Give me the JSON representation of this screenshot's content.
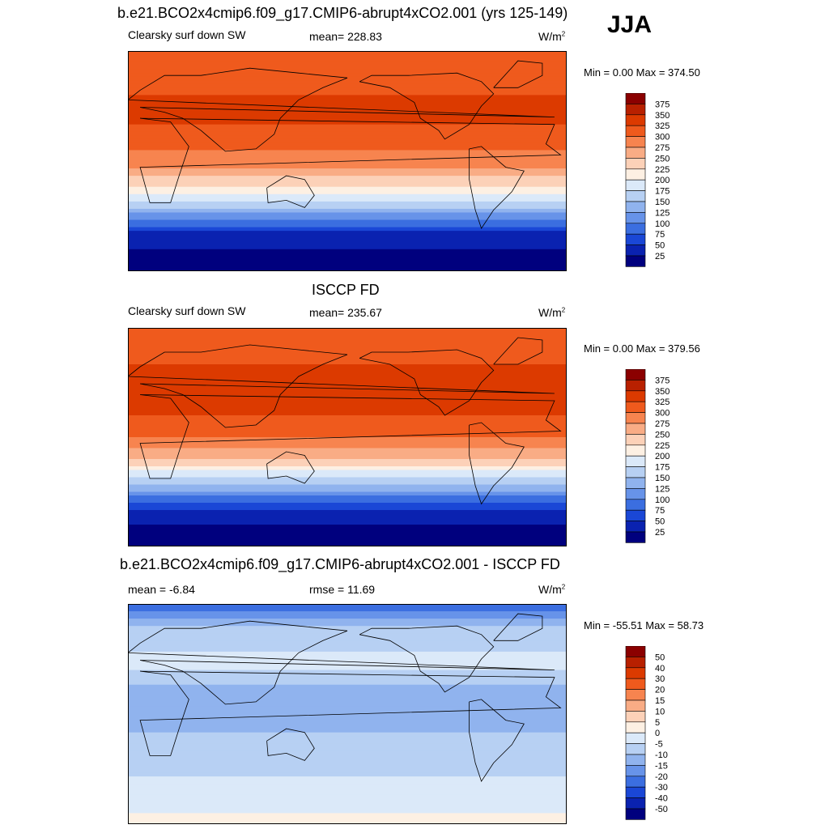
{
  "season": "JJA",
  "chart_data": [
    {
      "type": "heatmap",
      "title": "b.e21.BCO2x4cmip6.f09_g17.CMIP6-abrupt4xCO2.001 (yrs 125-149)",
      "left_label": "Clearsky surf down SW",
      "center_label": "mean= 228.83",
      "units": "W/m",
      "units_sup": "2",
      "minmax": "Min =   0.00 Max = 374.50",
      "min": 0.0,
      "max": 374.5,
      "colorbar_levels": [
        "375",
        "350",
        "325",
        "300",
        "275",
        "250",
        "225",
        "200",
        "175",
        "150",
        "125",
        "100",
        "75",
        "50",
        "25"
      ],
      "colors": [
        "#8b0000",
        "#b82000",
        "#dc3a00",
        "#ef5a1d",
        "#f7844f",
        "#f9ac85",
        "#fcd1b8",
        "#fdf0e3",
        "#dbe9f9",
        "#b7d0f3",
        "#90b3ee",
        "#6793e9",
        "#3b6ee0",
        "#1a47d6",
        "#0a22b0",
        "#00007e"
      ],
      "lat_profile": [
        {
          "lat": 90,
          "value": 310
        },
        {
          "lat": 60,
          "value": 320
        },
        {
          "lat": 40,
          "value": 335
        },
        {
          "lat": 20,
          "value": 315
        },
        {
          "lat": 0,
          "value": 290
        },
        {
          "lat": -20,
          "value": 230
        },
        {
          "lat": -40,
          "value": 140
        },
        {
          "lat": -60,
          "value": 40
        },
        {
          "lat": -90,
          "value": 0
        }
      ]
    },
    {
      "type": "heatmap",
      "title": "ISCCP FD",
      "left_label": "Clearsky surf down SW",
      "center_label": "mean= 235.67",
      "units": "W/m",
      "units_sup": "2",
      "minmax": "Min =   0.00 Max = 379.56",
      "min": 0.0,
      "max": 379.56,
      "colorbar_levels": [
        "375",
        "350",
        "325",
        "300",
        "275",
        "250",
        "225",
        "200",
        "175",
        "150",
        "125",
        "100",
        "75",
        "50",
        "25"
      ],
      "colors": [
        "#8b0000",
        "#b82000",
        "#dc3a00",
        "#ef5a1d",
        "#f7844f",
        "#f9ac85",
        "#fcd1b8",
        "#fdf0e3",
        "#dbe9f9",
        "#b7d0f3",
        "#90b3ee",
        "#6793e9",
        "#3b6ee0",
        "#1a47d6",
        "#0a22b0",
        "#00007e"
      ],
      "lat_profile": [
        {
          "lat": 90,
          "value": 320
        },
        {
          "lat": 60,
          "value": 325
        },
        {
          "lat": 40,
          "value": 340
        },
        {
          "lat": 20,
          "value": 330
        },
        {
          "lat": 0,
          "value": 300
        },
        {
          "lat": -20,
          "value": 240
        },
        {
          "lat": -40,
          "value": 145
        },
        {
          "lat": -60,
          "value": 45
        },
        {
          "lat": -90,
          "value": 0
        }
      ]
    },
    {
      "type": "heatmap",
      "title": "b.e21.BCO2x4cmip6.f09_g17.CMIP6-abrupt4xCO2.001 - ISCCP FD",
      "left_label": "mean =  -6.84",
      "center_label": "rmse =  11.69",
      "units": "W/m",
      "units_sup": "2",
      "minmax": "Min = -55.51 Max =  58.73",
      "min": -55.51,
      "max": 58.73,
      "colorbar_levels": [
        "50",
        "40",
        "30",
        "20",
        "15",
        "10",
        "5",
        "0",
        "-5",
        "-10",
        "-15",
        "-20",
        "-30",
        "-40",
        "-50"
      ],
      "colors": [
        "#8b0000",
        "#b82000",
        "#dc3a00",
        "#ef5a1d",
        "#f7844f",
        "#f9ac85",
        "#fcd1b8",
        "#fdf0e3",
        "#dbe9f9",
        "#b7d0f3",
        "#90b3ee",
        "#6793e9",
        "#3b6ee0",
        "#1a47d6",
        "#0a22b0",
        "#00007e"
      ],
      "lat_profile": [
        {
          "lat": 90,
          "value": -25
        },
        {
          "lat": 70,
          "value": -8
        },
        {
          "lat": 40,
          "value": -3
        },
        {
          "lat": 20,
          "value": -12
        },
        {
          "lat": 0,
          "value": -15
        },
        {
          "lat": -20,
          "value": -8
        },
        {
          "lat": -40,
          "value": -6
        },
        {
          "lat": -60,
          "value": -4
        },
        {
          "lat": -90,
          "value": 2
        }
      ]
    }
  ]
}
